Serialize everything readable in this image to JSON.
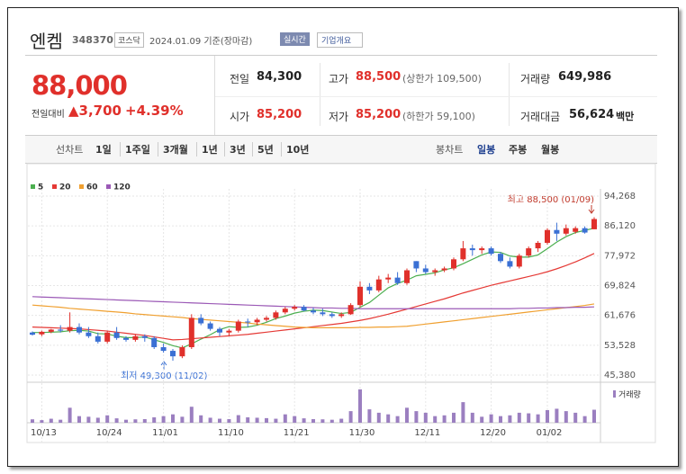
{
  "header": {
    "name": "엔켐",
    "code": "348370",
    "market": "코스닥",
    "date": "2024.01.09 기준(장마감)",
    "badge": "실시간",
    "button": "기업개요"
  },
  "quote": {
    "price": "88,000",
    "change_label": "전일대비",
    "change": "3,700",
    "percent": "+4.39%",
    "cells": [
      {
        "label": "전일",
        "value": "84,300"
      },
      {
        "label": "고가",
        "value": "88,500",
        "sub": "(상한가 109,500)"
      },
      {
        "label": "거래량",
        "value": "649,986"
      },
      {
        "label": "시가",
        "value": "85,200"
      },
      {
        "label": "저가",
        "value": "85,200",
        "sub": "(하한가 59,100)"
      },
      {
        "label": "거래대금",
        "value": "56,624",
        "sub": "백만"
      }
    ]
  },
  "tabs": {
    "line_label": "선차트",
    "line": [
      "1일",
      "1주일",
      "3개월",
      "1년",
      "3년",
      "5년",
      "10년"
    ],
    "candle_label": "봉차트",
    "candle": [
      "일봉",
      "주봉",
      "월봉"
    ]
  },
  "chart_data": {
    "type": "candlestick",
    "up_color": "#e0302b",
    "down_color": "#3a70d4",
    "categories": [
      null,
      "10/13",
      null,
      null,
      null,
      null,
      null,
      null,
      "10/24",
      null,
      null,
      null,
      null,
      null,
      "11/01",
      null,
      null,
      null,
      null,
      null,
      null,
      "11/10",
      null,
      null,
      null,
      null,
      null,
      null,
      "11/21",
      null,
      null,
      null,
      null,
      null,
      null,
      "11/30",
      null,
      null,
      null,
      null,
      null,
      null,
      "12/11",
      null,
      null,
      null,
      null,
      null,
      null,
      "12/20",
      null,
      null,
      null,
      null,
      null,
      "01/02",
      null,
      null,
      null,
      null,
      null
    ],
    "open": [
      57000,
      56500,
      57200,
      57800,
      57500,
      58500,
      57000,
      56000,
      54500,
      57000,
      55500,
      55000,
      56000,
      55500,
      53000,
      52000,
      50500,
      53000,
      61000,
      59500,
      58000,
      57000,
      57500,
      60000,
      59800,
      60500,
      61000,
      62500,
      63500,
      64000,
      63000,
      62500,
      62000,
      61500,
      62000,
      64500,
      69500,
      68500,
      71500,
      72000,
      70500,
      76500,
      74500,
      73500,
      74000,
      74500,
      77000,
      80000,
      79500,
      80000,
      78500,
      76500,
      75000,
      78000,
      80000,
      81500,
      85000,
      84000,
      84500,
      85500,
      85200
    ],
    "high": [
      57300,
      57500,
      58000,
      59000,
      62500,
      59500,
      58500,
      57000,
      57500,
      58500,
      56000,
      56500,
      56500,
      56000,
      54000,
      52500,
      53500,
      62000,
      62000,
      60000,
      58500,
      58000,
      60500,
      60800,
      61000,
      61500,
      63000,
      64000,
      64500,
      64500,
      63800,
      63500,
      62500,
      62500,
      65000,
      71000,
      70500,
      72500,
      73000,
      73500,
      74500,
      76500,
      75500,
      74500,
      75000,
      77500,
      82000,
      81000,
      80500,
      80500,
      79000,
      77500,
      78500,
      80500,
      82000,
      85500,
      87000,
      86500,
      86000,
      86000,
      88500
    ],
    "low": [
      56200,
      56000,
      56800,
      57000,
      57000,
      56500,
      55500,
      54000,
      54000,
      55000,
      54500,
      54500,
      54500,
      52500,
      51500,
      49300,
      50000,
      52500,
      59000,
      57500,
      56000,
      56000,
      57000,
      58500,
      59000,
      60000,
      60500,
      62000,
      63000,
      62800,
      62000,
      61500,
      61000,
      61000,
      61800,
      64000,
      67500,
      68000,
      70500,
      70000,
      70000,
      73500,
      73000,
      72500,
      73500,
      74000,
      76500,
      78000,
      78500,
      78000,
      76000,
      74500,
      74500,
      77500,
      79000,
      81000,
      82000,
      83500,
      84000,
      84000,
      85200
    ],
    "close": [
      56400,
      57200,
      57800,
      57500,
      58500,
      57000,
      56000,
      54500,
      57000,
      55500,
      55000,
      56000,
      55500,
      53000,
      52000,
      50500,
      53000,
      61000,
      59500,
      58000,
      57000,
      57500,
      60000,
      59800,
      60500,
      61000,
      62500,
      63500,
      64000,
      63000,
      62500,
      62000,
      61500,
      62000,
      64500,
      69500,
      68500,
      71500,
      72000,
      70500,
      74000,
      74500,
      73500,
      74000,
      74500,
      77000,
      80000,
      79500,
      80000,
      78500,
      76500,
      75000,
      78000,
      80000,
      81500,
      85000,
      84000,
      85500,
      85500,
      84300,
      88000
    ],
    "series": [
      {
        "name": "5",
        "color": "#4caf50",
        "values": [
          57000,
          57000,
          57100,
          57200,
          57500,
          57600,
          57400,
          56700,
          56600,
          56000,
          55600,
          55600,
          55800,
          55000,
          54300,
          53400,
          52800,
          53900,
          55200,
          56400,
          57800,
          58600,
          58400,
          58500,
          59000,
          59800,
          60800,
          61500,
          62300,
          62800,
          63100,
          63000,
          62600,
          62200,
          62500,
          63900,
          65200,
          67200,
          69200,
          70400,
          71300,
          72500,
          72900,
          73300,
          74100,
          74700,
          75800,
          77000,
          78200,
          79000,
          78900,
          77900,
          77600,
          77600,
          78200,
          79900,
          81700,
          83200,
          84300,
          84900,
          85500
        ]
      },
      {
        "name": "20",
        "color": "#e53935",
        "values": [
          58500,
          58400,
          58300,
          58200,
          58100,
          58000,
          57800,
          57600,
          57400,
          57100,
          56800,
          56500,
          56200,
          55800,
          55400,
          55000,
          55100,
          55300,
          55500,
          55700,
          55900,
          56100,
          56300,
          56500,
          56800,
          57100,
          57400,
          57700,
          58000,
          58300,
          58600,
          58900,
          59200,
          59500,
          59900,
          60300,
          60800,
          61400,
          62000,
          62700,
          63400,
          64100,
          64800,
          65500,
          66200,
          67000,
          67800,
          68500,
          69200,
          69900,
          70500,
          71100,
          71700,
          72300,
          72900,
          73600,
          74400,
          75300,
          76300,
          77400,
          78600
        ]
      },
      {
        "name": "60",
        "color": "#f0a030",
        "values": [
          64500,
          64300,
          64100,
          63900,
          63600,
          63400,
          63200,
          63000,
          62800,
          62600,
          62400,
          62100,
          61900,
          61700,
          61500,
          61300,
          61100,
          60800,
          60600,
          60400,
          60200,
          60000,
          59800,
          59600,
          59300,
          59100,
          58900,
          58700,
          58500,
          58400,
          58300,
          58300,
          58300,
          58300,
          58300,
          58400,
          58400,
          58500,
          58500,
          58600,
          58700,
          59000,
          59300,
          59600,
          59900,
          60200,
          60500,
          60800,
          61100,
          61400,
          61700,
          62000,
          62300,
          62600,
          62900,
          63200,
          63500,
          63800,
          64100,
          64400,
          64800
        ]
      },
      {
        "name": "120",
        "color": "#9b59b6",
        "values": [
          66800,
          66700,
          66600,
          66500,
          66400,
          66300,
          66200,
          66100,
          66000,
          65900,
          65800,
          65700,
          65600,
          65500,
          65400,
          65300,
          65200,
          65100,
          65000,
          64900,
          64800,
          64700,
          64600,
          64500,
          64400,
          64300,
          64200,
          64100,
          64000,
          63900,
          63800,
          63700,
          63700,
          63600,
          63600,
          63500,
          63500,
          63500,
          63500,
          63500,
          63500,
          63500,
          63500,
          63500,
          63500,
          63500,
          63500,
          63500,
          63500,
          63500,
          63500,
          63500,
          63600,
          63600,
          63700,
          63700,
          63800,
          63800,
          63900,
          63900,
          64000
        ]
      }
    ],
    "volume": {
      "name": "거래량",
      "color": "#9b7fc0",
      "ylim": [
        0,
        1800000
      ],
      "values": [
        170000,
        130000,
        200000,
        150000,
        750000,
        330000,
        300000,
        250000,
        370000,
        220000,
        150000,
        170000,
        180000,
        270000,
        330000,
        420000,
        300000,
        800000,
        370000,
        250000,
        200000,
        180000,
        380000,
        270000,
        250000,
        230000,
        200000,
        420000,
        330000,
        220000,
        180000,
        170000,
        150000,
        200000,
        580000,
        1670000,
        670000,
        500000,
        420000,
        330000,
        750000,
        580000,
        500000,
        330000,
        370000,
        500000,
        1030000,
        500000,
        300000,
        420000,
        330000,
        370000,
        500000,
        470000,
        420000,
        630000,
        700000,
        580000,
        500000,
        330000,
        649986
      ]
    },
    "ylim": [
      45380,
      94268
    ],
    "yticks": [
      {
        "value": 94268,
        "label": "94,268"
      },
      {
        "value": 86120,
        "label": "86,120"
      },
      {
        "value": 77972,
        "label": "77,972"
      },
      {
        "value": 69824,
        "label": "69,824"
      },
      {
        "value": 61676,
        "label": "61,676"
      },
      {
        "value": 53528,
        "label": "53,528"
      },
      {
        "value": 45380,
        "label": "45,380"
      }
    ],
    "grid": true,
    "annotations": [
      "최고 88,500 (01/09)",
      "최저 49,300 (11/02)"
    ]
  }
}
